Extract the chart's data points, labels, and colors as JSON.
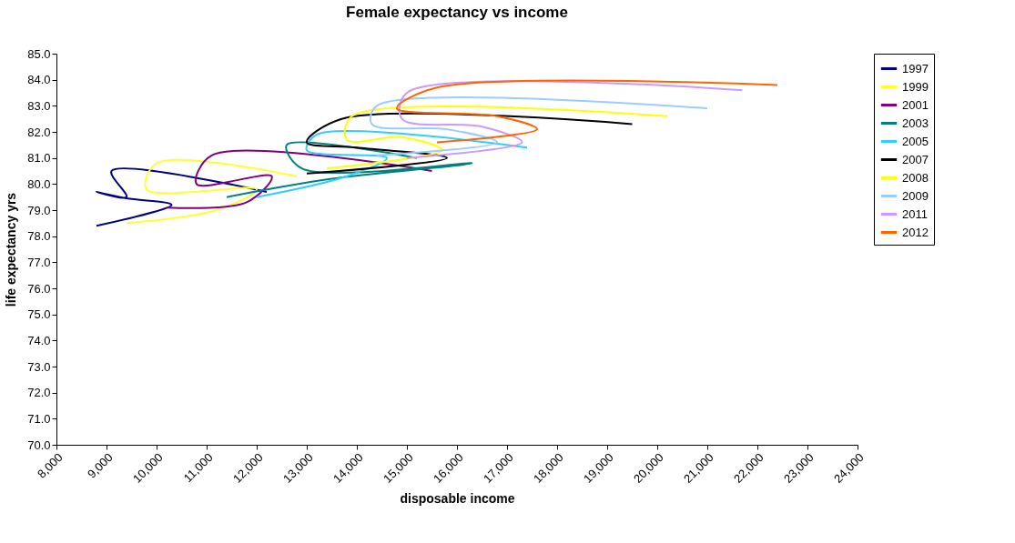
{
  "chart_data": {
    "type": "line",
    "title": "Female expectancy vs income",
    "xlabel": "disposable income",
    "ylabel": "life expectancy yrs",
    "xlim": [
      8000,
      24000
    ],
    "ylim": [
      70,
      85
    ],
    "xticks": [
      {
        "value": 8000,
        "label": "8,000"
      },
      {
        "value": 9000,
        "label": "9,000"
      },
      {
        "value": 10000,
        "label": "10,000"
      },
      {
        "value": 11000,
        "label": "11,000"
      },
      {
        "value": 12000,
        "label": "12,000"
      },
      {
        "value": 13000,
        "label": "13,000"
      },
      {
        "value": 14000,
        "label": "14,000"
      },
      {
        "value": 15000,
        "label": "15,000"
      },
      {
        "value": 16000,
        "label": "16,000"
      },
      {
        "value": 17000,
        "label": "17,000"
      },
      {
        "value": 18000,
        "label": "18,000"
      },
      {
        "value": 19000,
        "label": "19,000"
      },
      {
        "value": 20000,
        "label": "20,000"
      },
      {
        "value": 21000,
        "label": "21,000"
      },
      {
        "value": 22000,
        "label": "22,000"
      },
      {
        "value": 23000,
        "label": "23,000"
      },
      {
        "value": 24000,
        "label": "24,000"
      }
    ],
    "yticks": [
      {
        "value": 70,
        "label": "70.0"
      },
      {
        "value": 71,
        "label": "71.0"
      },
      {
        "value": 72,
        "label": "72.0"
      },
      {
        "value": 73,
        "label": "73.0"
      },
      {
        "value": 74,
        "label": "74.0"
      },
      {
        "value": 75,
        "label": "75.0"
      },
      {
        "value": 76,
        "label": "76.0"
      },
      {
        "value": 77,
        "label": "77.0"
      },
      {
        "value": 78,
        "label": "78.0"
      },
      {
        "value": 79,
        "label": "79.0"
      },
      {
        "value": 80,
        "label": "80.0"
      },
      {
        "value": 81,
        "label": "81.0"
      },
      {
        "value": 82,
        "label": "82.0"
      },
      {
        "value": 83,
        "label": "83.0"
      },
      {
        "value": 84,
        "label": "84.0"
      },
      {
        "value": 85,
        "label": "85.0"
      }
    ],
    "grid": false,
    "legend": "right",
    "marker": "none",
    "line_style": "solid",
    "series": [
      {
        "name": "1997",
        "color": "#000080",
        "x": [
          8800,
          10300,
          9400,
          8800,
          9400,
          9100,
          12200
        ],
        "values": [
          78.4,
          79.2,
          79.45,
          79.7,
          79.5,
          80.5,
          79.7
        ]
      },
      {
        "name": "1999",
        "color": "#ffff33",
        "x": [
          9400,
          11200,
          12000,
          9800,
          10000,
          12800
        ],
        "values": [
          78.5,
          79.0,
          79.8,
          79.8,
          80.8,
          80.3
        ]
      },
      {
        "name": "2001",
        "color": "#800080",
        "x": [
          10200,
          11800,
          12300,
          10800,
          11100,
          15500
        ],
        "values": [
          79.1,
          79.3,
          80.3,
          80.0,
          81.1,
          80.5
        ]
      },
      {
        "name": "2003",
        "color": "#008080",
        "x": [
          11400,
          13500,
          16300,
          12900,
          12600,
          15200
        ],
        "values": [
          79.5,
          80.2,
          80.8,
          80.6,
          81.5,
          81.0
        ]
      },
      {
        "name": "2005",
        "color": "#33ccff",
        "x": [
          12000,
          13800,
          14600,
          13000,
          13200,
          17400
        ],
        "values": [
          79.5,
          80.3,
          81.0,
          81.3,
          81.9,
          81.4
        ]
      },
      {
        "name": "2007",
        "color": "#000000",
        "x": [
          13000,
          15800,
          14000,
          13000,
          13700,
          19500
        ],
        "values": [
          80.4,
          81.0,
          81.4,
          81.6,
          82.5,
          82.3
        ]
      },
      {
        "name": "2008",
        "color": "#ffff00",
        "x": [
          13400,
          15700,
          14900,
          13800,
          13900,
          20200
        ],
        "values": [
          80.6,
          81.3,
          81.8,
          81.7,
          82.6,
          82.6
        ]
      },
      {
        "name": "2009",
        "color": "#99ccff",
        "x": [
          14400,
          16800,
          15800,
          14300,
          14400,
          21000
        ],
        "values": [
          81.1,
          81.6,
          82.1,
          82.3,
          83.0,
          82.9
        ]
      },
      {
        "name": "2011",
        "color": "#cc99ff",
        "x": [
          15000,
          17300,
          16500,
          14900,
          15000,
          21700
        ],
        "values": [
          81.0,
          81.6,
          82.2,
          82.5,
          83.5,
          83.6
        ]
      },
      {
        "name": "2012",
        "color": "#ff6600",
        "x": [
          15600,
          17600,
          16800,
          14800,
          15600,
          22400
        ],
        "values": [
          81.6,
          82.1,
          82.6,
          82.9,
          83.7,
          83.8
        ]
      }
    ]
  }
}
